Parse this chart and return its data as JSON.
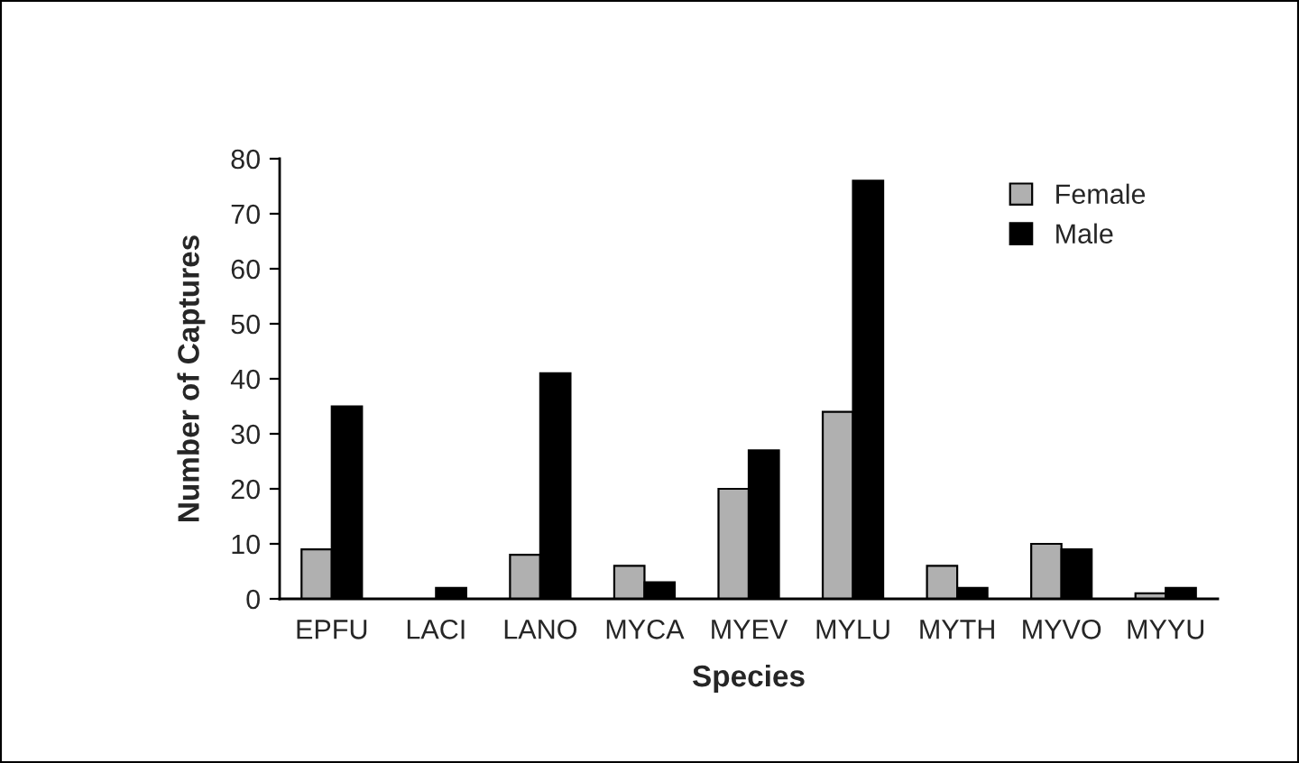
{
  "chart_data": {
    "type": "bar",
    "xlabel": "Species",
    "ylabel": "Number of Captures",
    "categories": [
      "EPFU",
      "LACI",
      "LANO",
      "MYCA",
      "MYEV",
      "MYLU",
      "MYTH",
      "MYVO",
      "MYYU"
    ],
    "series": [
      {
        "name": "Female",
        "color": "#b0b0b0",
        "values": [
          9,
          0,
          8,
          6,
          20,
          34,
          6,
          10,
          1
        ]
      },
      {
        "name": "Male",
        "color": "#000000",
        "values": [
          35,
          2,
          41,
          3,
          27,
          76,
          2,
          9,
          2
        ]
      }
    ],
    "ylim": [
      0,
      80
    ],
    "yticks": [
      0,
      10,
      20,
      30,
      40,
      50,
      60,
      70,
      80
    ],
    "grid": false,
    "legend": "top right"
  }
}
